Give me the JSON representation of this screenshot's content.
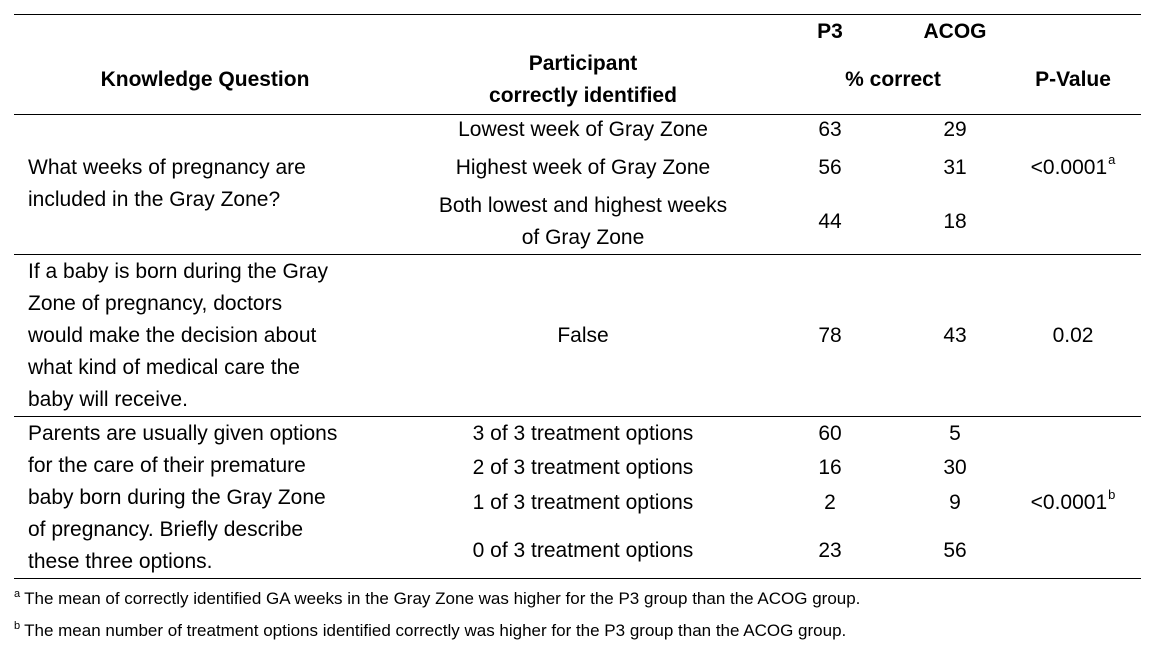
{
  "header": {
    "knowledge_question": "Knowledge Question",
    "participant_line1": "Participant",
    "participant_line2": "correctly identified",
    "p3": "P3",
    "acog": "ACOG",
    "pct_correct": "% correct",
    "p_value": "P-Value"
  },
  "rows": [
    {
      "question_lines": [
        "What weeks of pregnancy are",
        "included in the Gray Zone?"
      ],
      "answers": [
        {
          "label": "Lowest week of Gray Zone",
          "p3": "63",
          "acog": "29"
        },
        {
          "label": "Highest week of Gray Zone",
          "p3": "56",
          "acog": "31"
        },
        {
          "label_lines": [
            "Both lowest and highest weeks",
            "of Gray Zone"
          ],
          "p3": "44",
          "acog": "18"
        }
      ],
      "p_value": "<0.0001",
      "p_sup": "a"
    },
    {
      "question_lines": [
        "If a baby is born during the Gray",
        "Zone of pregnancy, doctors",
        "would make the decision about",
        "what kind of medical care the",
        "baby will receive."
      ],
      "answers": [
        {
          "label": "False",
          "p3": "78",
          "acog": "43"
        }
      ],
      "p_value": "0.02"
    },
    {
      "question_lines": [
        "Parents are usually given options",
        "for the care of their premature",
        "baby born during the Gray Zone",
        "of pregnancy. Briefly describe",
        "these three options."
      ],
      "answers": [
        {
          "label": "3 of 3 treatment options",
          "p3": "60",
          "acog": "5"
        },
        {
          "label": "2 of 3 treatment options",
          "p3": "16",
          "acog": "30"
        },
        {
          "label": "1 of 3 treatment options",
          "p3": "2",
          "acog": "9"
        },
        {
          "label": "0 of 3 treatment options",
          "p3": "23",
          "acog": "56"
        }
      ],
      "p_value": "<0.0001",
      "p_sup": "b"
    }
  ],
  "footnotes": [
    {
      "mark": "a",
      "text": "The mean of correctly identified GA weeks in the Gray Zone was higher for the P3 group than the ACOG group."
    },
    {
      "mark": "b",
      "text": "The mean number of treatment options identified correctly was higher for the P3 group than the ACOG group."
    }
  ]
}
